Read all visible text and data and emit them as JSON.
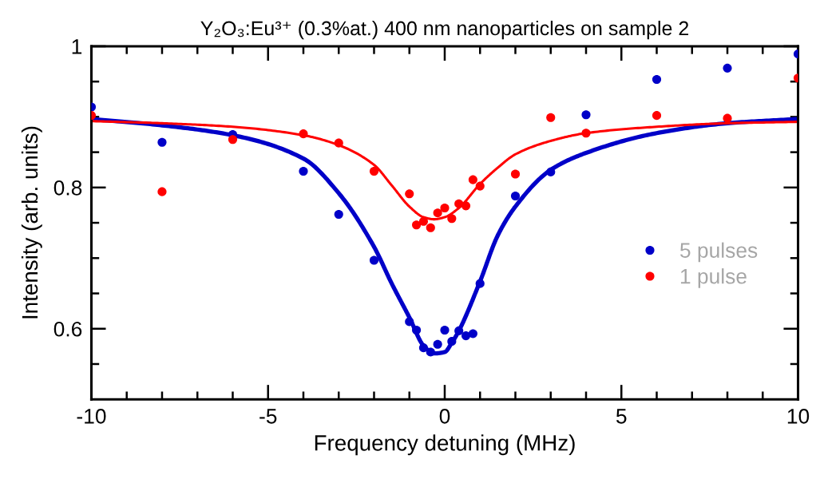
{
  "chart_data": {
    "type": "scatter",
    "title": "Y₂O₃:Eu³⁺ (0.3%at.) 400 nm nanoparticles on sample 2",
    "xlabel": "Frequency detuning (MHz)",
    "ylabel": "Intensity (arb. units)",
    "xlim": [
      -10,
      10
    ],
    "ylim": [
      0.5,
      1.0
    ],
    "xticks": [
      -10,
      {
        "value": -9,
        "label": null
      },
      {
        "value": -8,
        "label": null
      },
      {
        "value": -7,
        "label": null
      },
      {
        "value": -6,
        "label": null
      },
      -5,
      {
        "value": -4,
        "label": null
      },
      {
        "value": -3,
        "label": null
      },
      {
        "value": -2,
        "label": null
      },
      {
        "value": -1,
        "label": null
      },
      0,
      {
        "value": 1,
        "label": null
      },
      {
        "value": 2,
        "label": null
      },
      {
        "value": 3,
        "label": null
      },
      {
        "value": 4,
        "label": null
      },
      5,
      {
        "value": 6,
        "label": null
      },
      {
        "value": 7,
        "label": null
      },
      {
        "value": 8,
        "label": null
      },
      {
        "value": 9,
        "label": null
      },
      10
    ],
    "yticks": [
      {
        "value": 0.55,
        "label": null
      },
      0.6,
      {
        "value": 0.65,
        "label": null
      },
      {
        "value": 0.7,
        "label": null
      },
      {
        "value": 0.75,
        "label": null
      },
      0.8,
      {
        "value": 0.85,
        "label": null
      },
      {
        "value": 0.9,
        "label": null
      },
      {
        "value": 0.95,
        "label": null
      },
      1
    ],
    "grid": false,
    "legend": "right",
    "marker": "circle",
    "series": [
      {
        "name": "5 pulses",
        "color": "#0000c8",
        "x": [
          -10,
          -8,
          -6,
          -4,
          -3,
          -2,
          -1,
          -0.8,
          -0.6,
          -0.4,
          -0.2,
          0,
          0.2,
          0.4,
          0.6,
          0.8,
          1,
          2,
          3,
          4,
          6,
          8,
          10
        ],
        "values": [
          0.914,
          0.864,
          0.875,
          0.823,
          0.762,
          0.697,
          0.61,
          0.598,
          0.573,
          0.567,
          0.578,
          0.598,
          0.582,
          0.597,
          0.59,
          0.593,
          0.664,
          0.788,
          0.822,
          0.903,
          0.953,
          0.969,
          0.989
        ]
      },
      {
        "name": "1 pulse",
        "color": "#ff0000",
        "x": [
          -10,
          -8,
          -6,
          -4,
          -3,
          -2,
          -1,
          -0.8,
          -0.6,
          -0.4,
          -0.2,
          0,
          0.2,
          0.4,
          0.6,
          0.8,
          1,
          2,
          3,
          4,
          6,
          8,
          10
        ],
        "values": [
          0.902,
          0.794,
          0.868,
          0.876,
          0.863,
          0.823,
          0.791,
          0.747,
          0.752,
          0.743,
          0.764,
          0.771,
          0.756,
          0.777,
          0.774,
          0.811,
          0.802,
          0.819,
          0.899,
          0.877,
          0.902,
          0.898,
          0.955
        ]
      },
      {
        "type": "line",
        "color": "#0000c8",
        "marker": "none",
        "x": [
          -10,
          -8,
          -6,
          -4,
          -3,
          -2,
          -1.5,
          -1,
          -0.6,
          -0.3,
          0,
          0.2,
          0.4,
          1,
          1.5,
          2,
          3,
          4,
          6,
          8,
          10
        ],
        "values": [
          0.897,
          0.888,
          0.874,
          0.841,
          0.792,
          0.716,
          0.664,
          0.616,
          0.576,
          0.565,
          0.567,
          0.58,
          0.597,
          0.667,
          0.732,
          0.773,
          0.825,
          0.849,
          0.877,
          0.891,
          0.897
        ]
      },
      {
        "type": "line",
        "color": "#ff0000",
        "marker": "none",
        "x": [
          -10,
          -8,
          -6,
          -4,
          -3,
          -2,
          -1.5,
          -1,
          -0.6,
          -0.3,
          0,
          0.4,
          1,
          1.5,
          2,
          3,
          4,
          6,
          8,
          10
        ],
        "values": [
          0.894,
          0.891,
          0.886,
          0.874,
          0.86,
          0.832,
          0.803,
          0.773,
          0.758,
          0.755,
          0.758,
          0.771,
          0.805,
          0.828,
          0.847,
          0.866,
          0.877,
          0.886,
          0.891,
          0.893
        ]
      }
    ]
  }
}
